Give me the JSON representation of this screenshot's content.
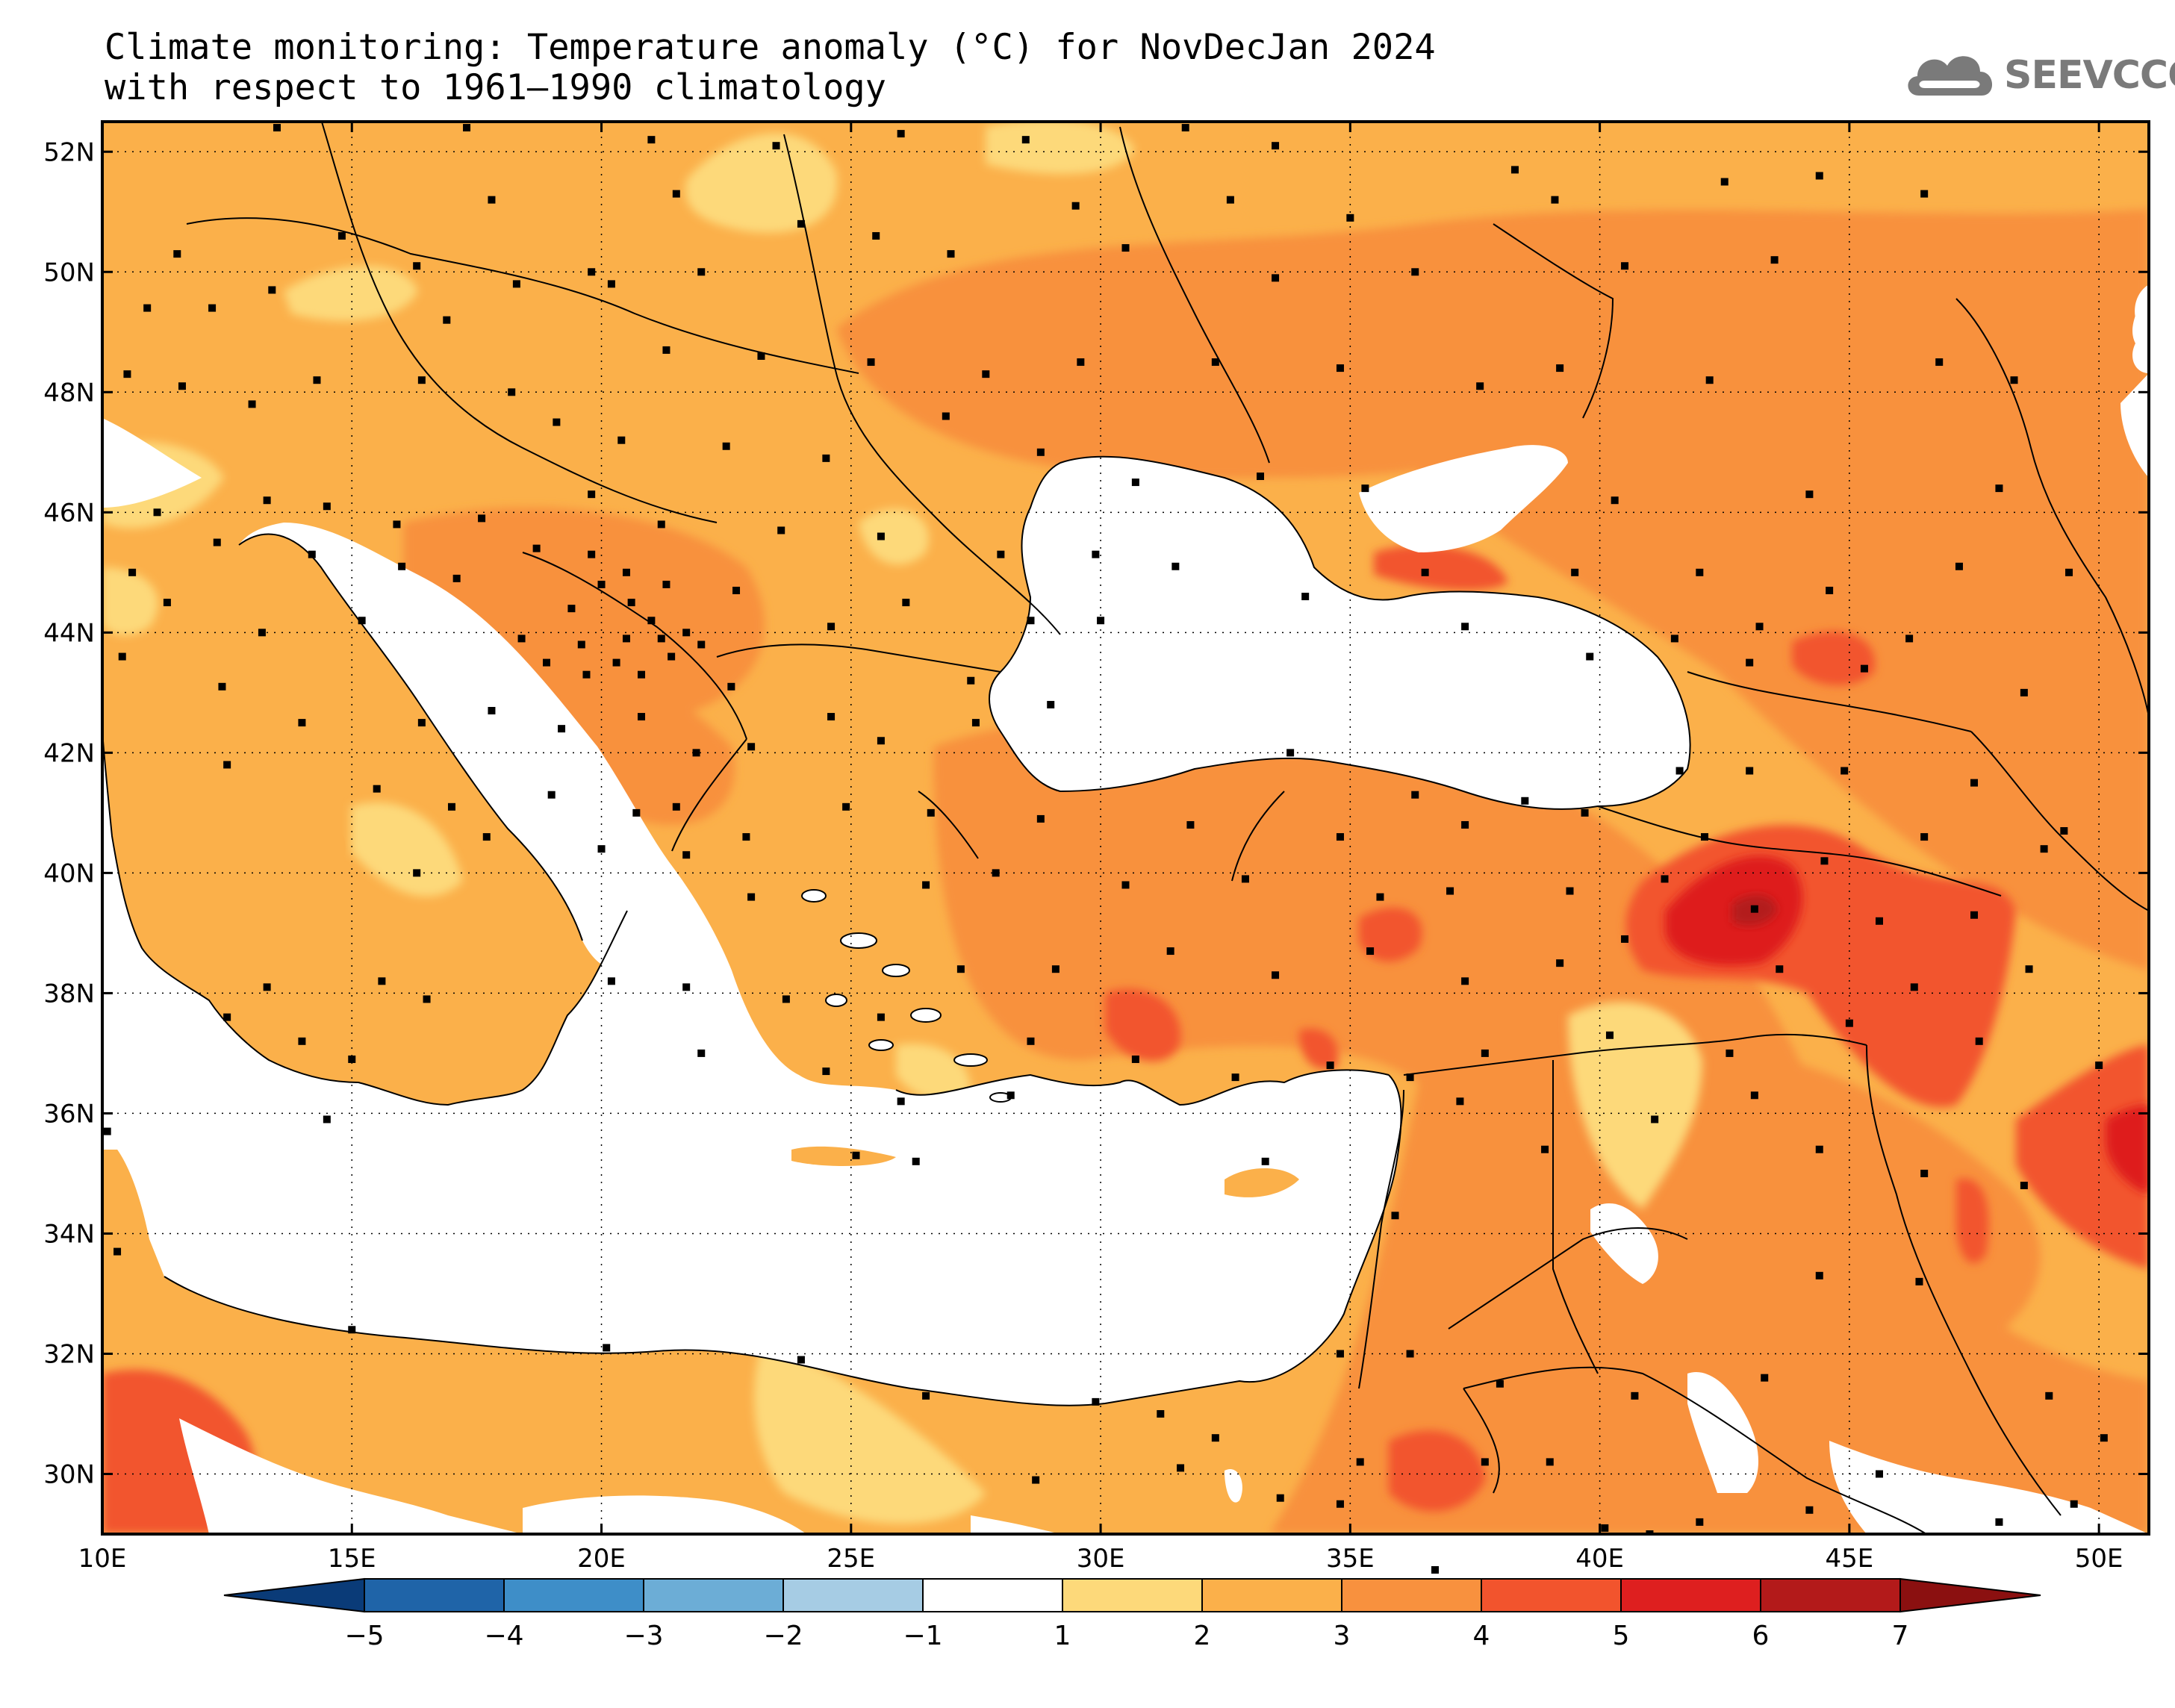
{
  "title": {
    "line1": "Climate monitoring: Temperature anomaly (°C) for NovDecJan 2024",
    "line2": "with respect to 1961–1990 climatology"
  },
  "logo": {
    "text": "SEEVCCC",
    "icon": "cloud-icon"
  },
  "map": {
    "lon_range": [
      10,
      51
    ],
    "lat_range": [
      29,
      52.5
    ],
    "lon_ticks": [
      {
        "value": 10,
        "label": "10E"
      },
      {
        "value": 15,
        "label": "15E"
      },
      {
        "value": 20,
        "label": "20E"
      },
      {
        "value": 25,
        "label": "25E"
      },
      {
        "value": 30,
        "label": "30E"
      },
      {
        "value": 35,
        "label": "35E"
      },
      {
        "value": 40,
        "label": "40E"
      },
      {
        "value": 45,
        "label": "45E"
      },
      {
        "value": 50,
        "label": "50E"
      }
    ],
    "lat_ticks": [
      {
        "value": 30,
        "label": "30N"
      },
      {
        "value": 32,
        "label": "32N"
      },
      {
        "value": 34,
        "label": "34N"
      },
      {
        "value": 36,
        "label": "36N"
      },
      {
        "value": 38,
        "label": "38N"
      },
      {
        "value": 40,
        "label": "40N"
      },
      {
        "value": 42,
        "label": "42N"
      },
      {
        "value": 44,
        "label": "44N"
      },
      {
        "value": 46,
        "label": "46N"
      },
      {
        "value": 48,
        "label": "48N"
      },
      {
        "value": 50,
        "label": "50N"
      },
      {
        "value": 52,
        "label": "52N"
      }
    ],
    "gridlines": "dotted"
  },
  "colorbar": {
    "labels": [
      "−5",
      "−4",
      "−3",
      "−2",
      "−1",
      "1",
      "2",
      "3",
      "4",
      "5",
      "6",
      "7"
    ],
    "colors": [
      "#0a3b78",
      "#1f64a8",
      "#3e8ec8",
      "#6cadd6",
      "#a6cce4",
      "#ffffff",
      "#fdd97a",
      "#fbb04a",
      "#f8913e",
      "#f2542d",
      "#de1f1f",
      "#b31a1a",
      "#8b1010"
    ]
  },
  "palette": {
    "c1_2": "#fdd97a",
    "c2_3": "#fbb04a",
    "c3_4": "#f8913e",
    "c4_5": "#f2542d",
    "c5_6": "#de1f1f",
    "c6_7": "#b31a1a",
    "no_data": "#ffffff"
  }
}
